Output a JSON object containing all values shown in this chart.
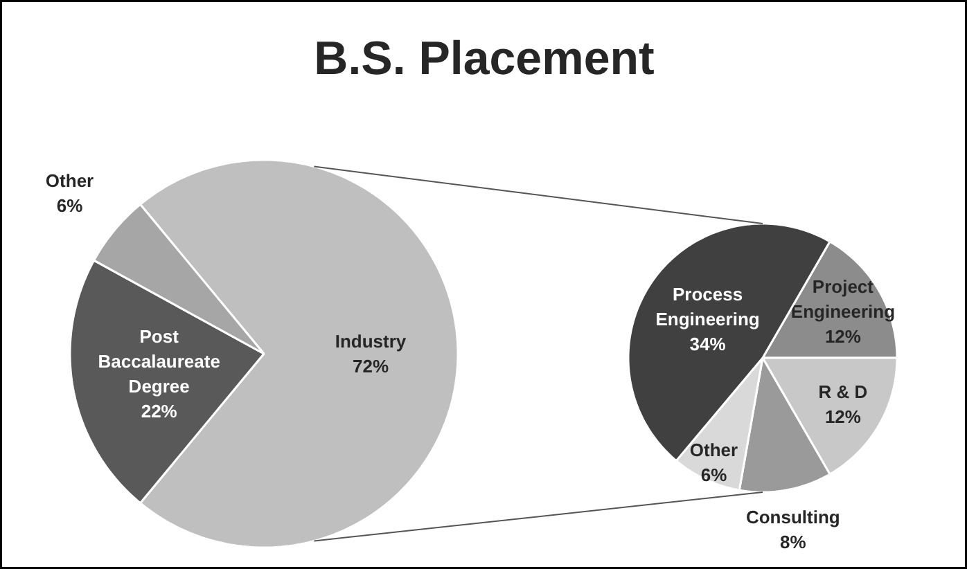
{
  "chart_data": [
    {
      "type": "pie",
      "title": "B.S. Placement",
      "categories": [
        "Industry",
        "Post Baccalaureate Degree",
        "Other"
      ],
      "values": [
        72,
        22,
        6
      ],
      "colors": [
        "#bfbfbf",
        "#595959",
        "#a6a6a6"
      ],
      "value_labels": [
        "72%",
        "22%",
        "6%"
      ]
    },
    {
      "type": "pie",
      "categories": [
        "Project Engineering",
        "R & D",
        "Consulting",
        "Other",
        "Process Engineering"
      ],
      "values": [
        12,
        12,
        8,
        6,
        34
      ],
      "colors": [
        "#8c8c8c",
        "#c8c8c8",
        "#9a9a9a",
        "#d9d9d9",
        "#404040"
      ],
      "value_labels": [
        "12%",
        "12%",
        "8%",
        "6%",
        "34%"
      ]
    }
  ]
}
